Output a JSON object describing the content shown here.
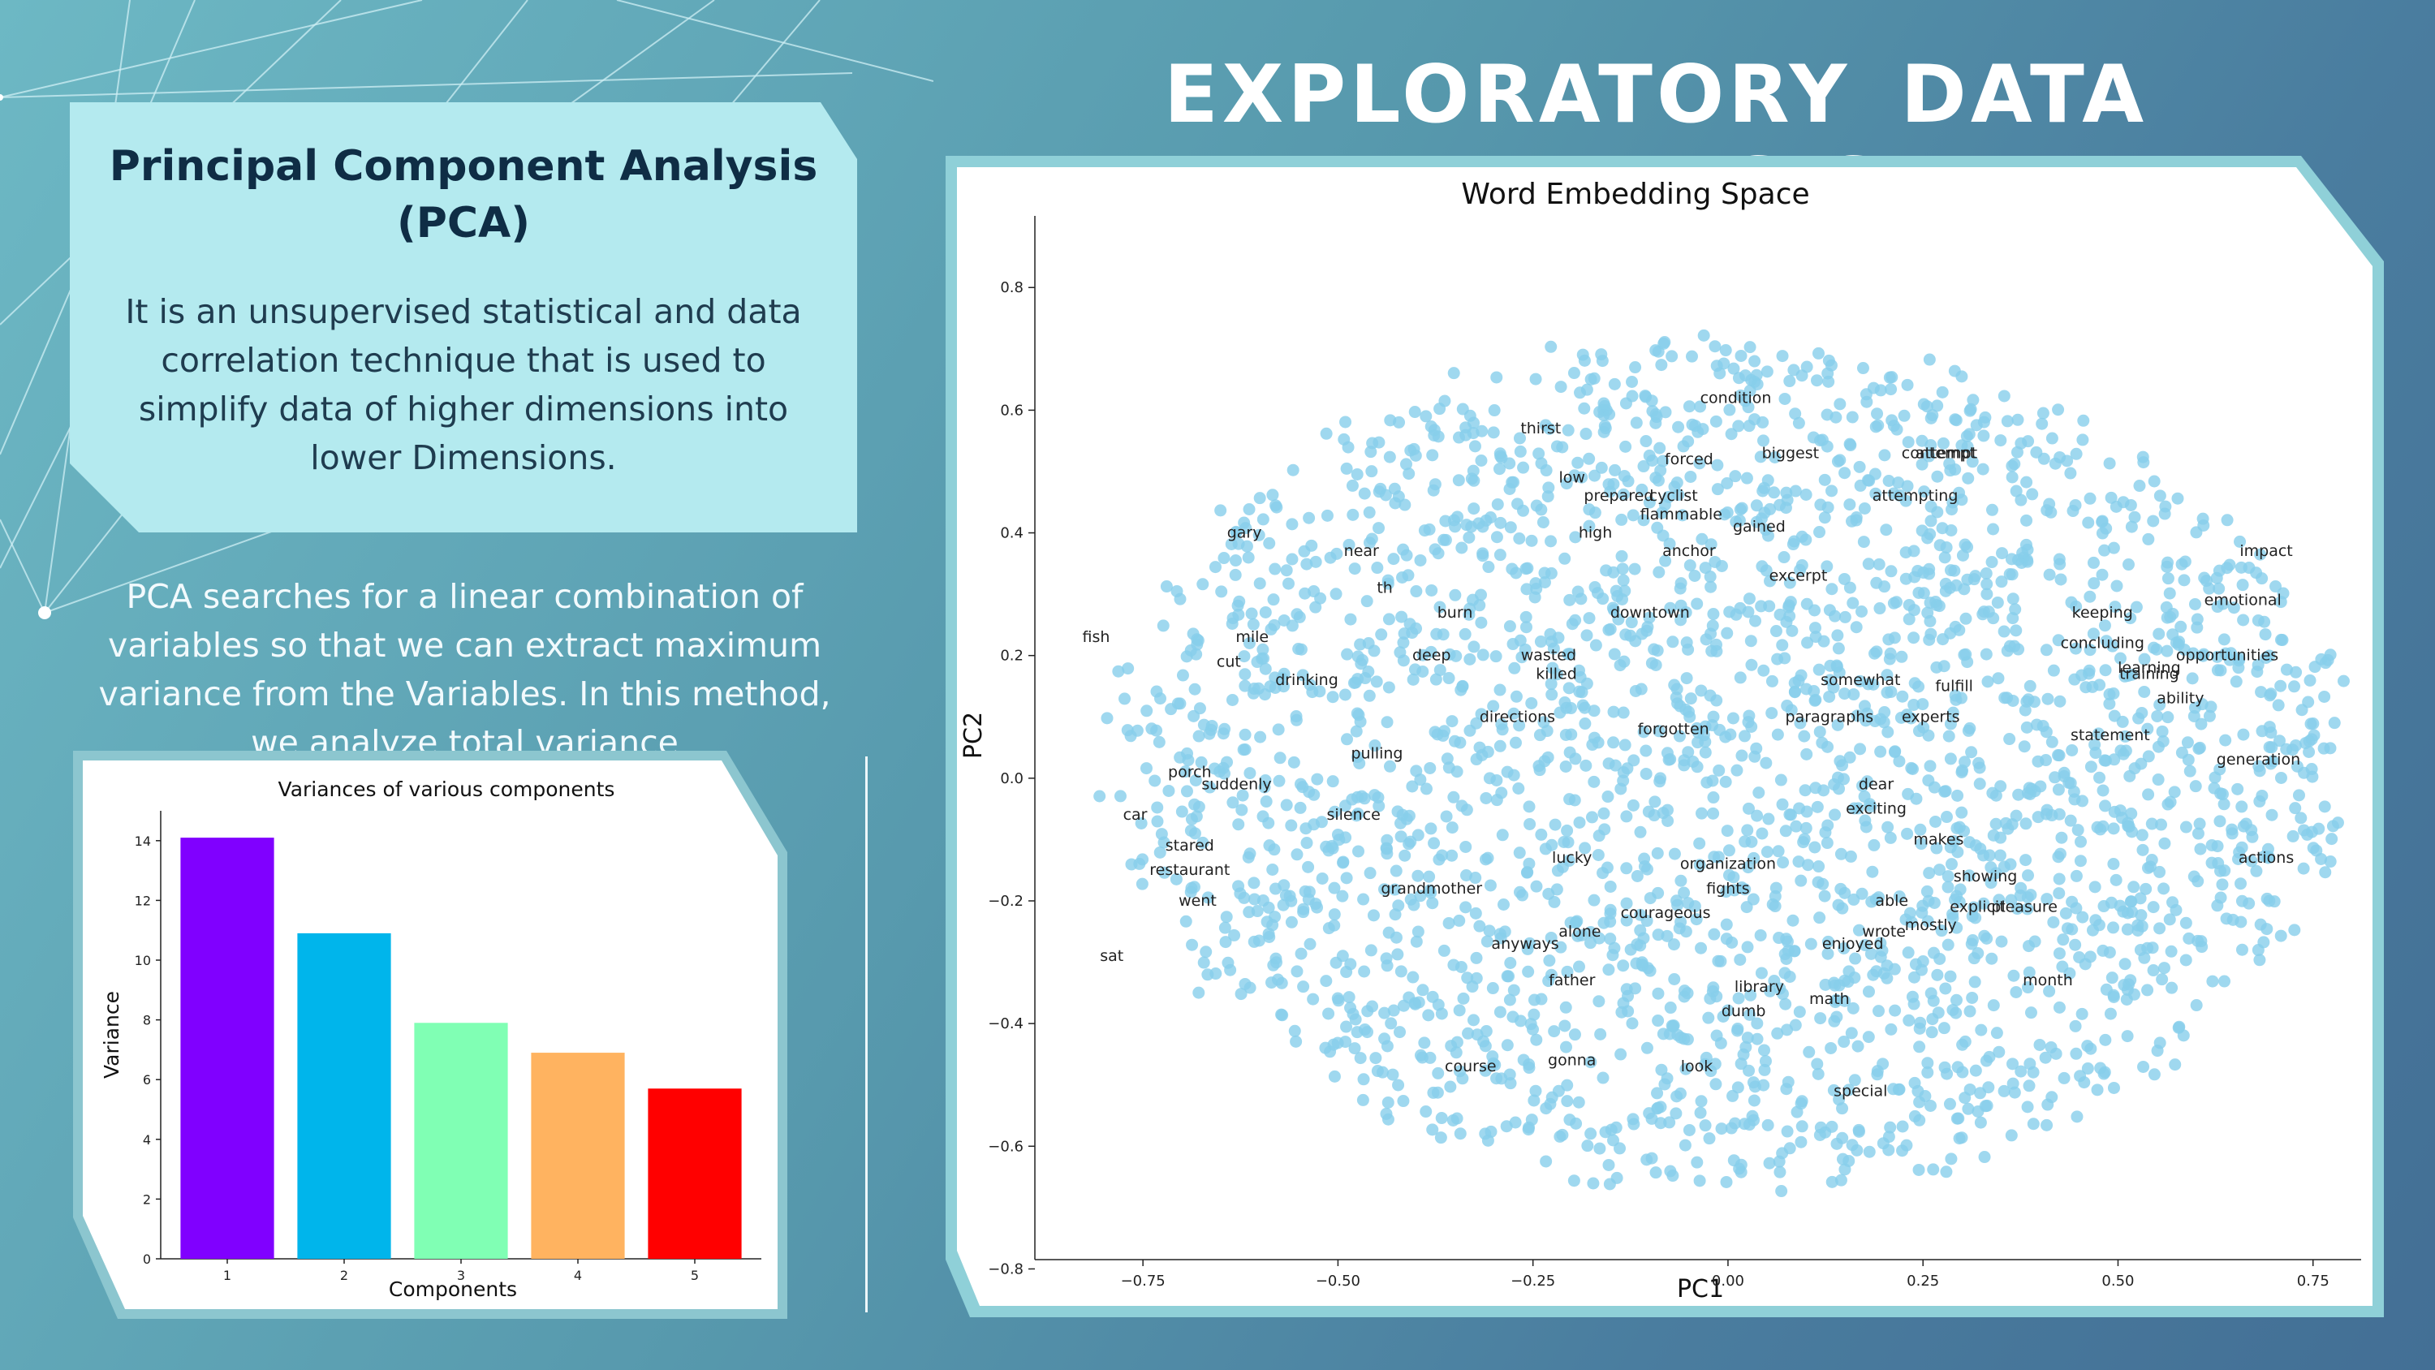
{
  "slide": {
    "title": "EXPLORATORY DATA ANALYSIS",
    "pca_heading": "Principal Component Analysis (PCA)",
    "pca_definition": "It is an unsupervised statistical and data correlation technique that is used to simplify data of higher dimensions into lower Dimensions.",
    "pca_description": "PCA searches for a linear combination of variables so that we can extract maximum variance from the Variables. In this method, we analyze total variance"
  },
  "colors": {
    "card_background": "#b4eaef",
    "heading_text": "#0f2d45",
    "scatter_point": "#87ceeb"
  },
  "chart_data": [
    {
      "type": "bar",
      "title": "Variances of various components",
      "xlabel": "Components",
      "ylabel": "Variance",
      "categories": [
        "1",
        "2",
        "3",
        "4",
        "5"
      ],
      "values": [
        14.1,
        10.9,
        7.9,
        6.9,
        5.7
      ],
      "colors": [
        "#8000ff",
        "#00b5eb",
        "#80ffb4",
        "#ffb360",
        "#ff0000"
      ],
      "ylim": [
        0,
        15
      ],
      "yticks": [
        "0",
        "2",
        "4",
        "6",
        "8",
        "10",
        "12",
        "14"
      ],
      "grid": false
    },
    {
      "type": "scatter",
      "title": "Word Embedding Space",
      "xlabel": "PC1",
      "ylabel": "PC2",
      "xlim": [
        -0.9,
        0.82
      ],
      "ylim": [
        -0.81,
        0.93
      ],
      "xticks": [
        {
          "v": -0.75,
          "label": "−0.75"
        },
        {
          "v": -0.5,
          "label": "−0.50"
        },
        {
          "v": -0.25,
          "label": "−0.25"
        },
        {
          "v": 0,
          "label": "0.00"
        },
        {
          "v": 0.25,
          "label": "0.25"
        },
        {
          "v": 0.5,
          "label": "0.50"
        },
        {
          "v": 0.75,
          "label": "0.75"
        }
      ],
      "yticks": [
        {
          "v": 0.8,
          "label": "0.8"
        },
        {
          "v": 0.6,
          "label": "0.6"
        },
        {
          "v": 0.4,
          "label": "0.4"
        },
        {
          "v": 0.2,
          "label": "0.2"
        },
        {
          "v": 0,
          "label": "0.0"
        },
        {
          "v": -0.2,
          "label": "−0.2"
        },
        {
          "v": -0.4,
          "label": "−0.4"
        },
        {
          "v": -0.6,
          "label": "−0.6"
        },
        {
          "v": -0.8,
          "label": "−0.8"
        }
      ],
      "grid": false,
      "point_color": "#87ceeb",
      "labeled_points": [
        {
          "word": "condition",
          "x": 0.01,
          "y": 0.62
        },
        {
          "word": "thirst",
          "x": -0.24,
          "y": 0.57
        },
        {
          "word": "forced",
          "x": -0.05,
          "y": 0.52
        },
        {
          "word": "biggest",
          "x": 0.08,
          "y": 0.53
        },
        {
          "word": "contempt",
          "x": 0.27,
          "y": 0.53
        },
        {
          "word": "attempt",
          "x": 0.28,
          "y": 0.53
        },
        {
          "word": "low",
          "x": -0.2,
          "y": 0.49
        },
        {
          "word": "prepared",
          "x": -0.14,
          "y": 0.46
        },
        {
          "word": "cyclist",
          "x": -0.07,
          "y": 0.46
        },
        {
          "word": "attempting",
          "x": 0.24,
          "y": 0.46
        },
        {
          "word": "flammable",
          "x": -0.06,
          "y": 0.43
        },
        {
          "word": "gained",
          "x": 0.04,
          "y": 0.41
        },
        {
          "word": "high",
          "x": -0.17,
          "y": 0.4
        },
        {
          "word": "anchor",
          "x": -0.05,
          "y": 0.37
        },
        {
          "word": "gary",
          "x": -0.62,
          "y": 0.4
        },
        {
          "word": "near",
          "x": -0.47,
          "y": 0.37
        },
        {
          "word": "impact",
          "x": 0.69,
          "y": 0.37
        },
        {
          "word": "excerpt",
          "x": 0.09,
          "y": 0.33
        },
        {
          "word": "th",
          "x": -0.44,
          "y": 0.31
        },
        {
          "word": "emotional",
          "x": 0.66,
          "y": 0.29
        },
        {
          "word": "burn",
          "x": -0.35,
          "y": 0.27
        },
        {
          "word": "downtown",
          "x": -0.1,
          "y": 0.27
        },
        {
          "word": "keeping",
          "x": 0.48,
          "y": 0.27
        },
        {
          "word": "fish",
          "x": -0.81,
          "y": 0.23
        },
        {
          "word": "mile",
          "x": -0.61,
          "y": 0.23
        },
        {
          "word": "concluding",
          "x": 0.48,
          "y": 0.22
        },
        {
          "word": "cut",
          "x": -0.64,
          "y": 0.19
        },
        {
          "word": "deep",
          "x": -0.38,
          "y": 0.2
        },
        {
          "word": "wasted",
          "x": -0.23,
          "y": 0.2
        },
        {
          "word": "opportunities",
          "x": 0.64,
          "y": 0.2
        },
        {
          "word": "killed",
          "x": -0.22,
          "y": 0.17
        },
        {
          "word": "training",
          "x": 0.54,
          "y": 0.17
        },
        {
          "word": "learning",
          "x": 0.54,
          "y": 0.18
        },
        {
          "word": "drinking",
          "x": -0.54,
          "y": 0.16
        },
        {
          "word": "somewhat",
          "x": 0.17,
          "y": 0.16
        },
        {
          "word": "fulfill",
          "x": 0.29,
          "y": 0.15
        },
        {
          "word": "ability",
          "x": 0.58,
          "y": 0.13
        },
        {
          "word": "directions",
          "x": -0.27,
          "y": 0.1
        },
        {
          "word": "paragraphs",
          "x": 0.13,
          "y": 0.1
        },
        {
          "word": "experts",
          "x": 0.26,
          "y": 0.1
        },
        {
          "word": "forgotten",
          "x": -0.07,
          "y": 0.08
        },
        {
          "word": "statement",
          "x": 0.49,
          "y": 0.07
        },
        {
          "word": "pulling",
          "x": -0.45,
          "y": 0.04
        },
        {
          "word": "generation",
          "x": 0.68,
          "y": 0.03
        },
        {
          "word": "porch",
          "x": -0.69,
          "y": 0.01
        },
        {
          "word": "suddenly",
          "x": -0.63,
          "y": -0.01
        },
        {
          "word": "dear",
          "x": 0.19,
          "y": -0.01
        },
        {
          "word": "exciting",
          "x": 0.19,
          "y": -0.05
        },
        {
          "word": "car",
          "x": -0.76,
          "y": -0.06
        },
        {
          "word": "silence",
          "x": -0.48,
          "y": -0.06
        },
        {
          "word": "makes",
          "x": 0.27,
          "y": -0.1
        },
        {
          "word": "stared",
          "x": -0.69,
          "y": -0.11
        },
        {
          "word": "lucky",
          "x": -0.2,
          "y": -0.13
        },
        {
          "word": "actions",
          "x": 0.69,
          "y": -0.13
        },
        {
          "word": "restaurant",
          "x": -0.69,
          "y": -0.15
        },
        {
          "word": "organization",
          "x": 0.0,
          "y": -0.14
        },
        {
          "word": "showing",
          "x": 0.33,
          "y": -0.16
        },
        {
          "word": "grandmother",
          "x": -0.38,
          "y": -0.18
        },
        {
          "word": "fights",
          "x": 0.0,
          "y": -0.18
        },
        {
          "word": "went",
          "x": -0.68,
          "y": -0.2
        },
        {
          "word": "able",
          "x": 0.21,
          "y": -0.2
        },
        {
          "word": "explicit",
          "x": 0.32,
          "y": -0.21
        },
        {
          "word": "pleasure",
          "x": 0.38,
          "y": -0.21
        },
        {
          "word": "courageous",
          "x": -0.08,
          "y": -0.22
        },
        {
          "word": "mostly",
          "x": 0.26,
          "y": -0.24
        },
        {
          "word": "wrote",
          "x": 0.2,
          "y": -0.25
        },
        {
          "word": "alone",
          "x": -0.19,
          "y": -0.25
        },
        {
          "word": "anyways",
          "x": -0.26,
          "y": -0.27
        },
        {
          "word": "enjoyed",
          "x": 0.16,
          "y": -0.27
        },
        {
          "word": "sat",
          "x": -0.79,
          "y": -0.29
        },
        {
          "word": "father",
          "x": -0.2,
          "y": -0.33
        },
        {
          "word": "library",
          "x": 0.04,
          "y": -0.34
        },
        {
          "word": "month",
          "x": 0.41,
          "y": -0.33
        },
        {
          "word": "math",
          "x": 0.13,
          "y": -0.36
        },
        {
          "word": "dumb",
          "x": 0.02,
          "y": -0.38
        },
        {
          "word": "gonna",
          "x": -0.2,
          "y": -0.46
        },
        {
          "word": "course",
          "x": -0.33,
          "y": -0.47
        },
        {
          "word": "look",
          "x": -0.04,
          "y": -0.47
        },
        {
          "word": "special",
          "x": 0.17,
          "y": -0.51
        }
      ]
    }
  ]
}
